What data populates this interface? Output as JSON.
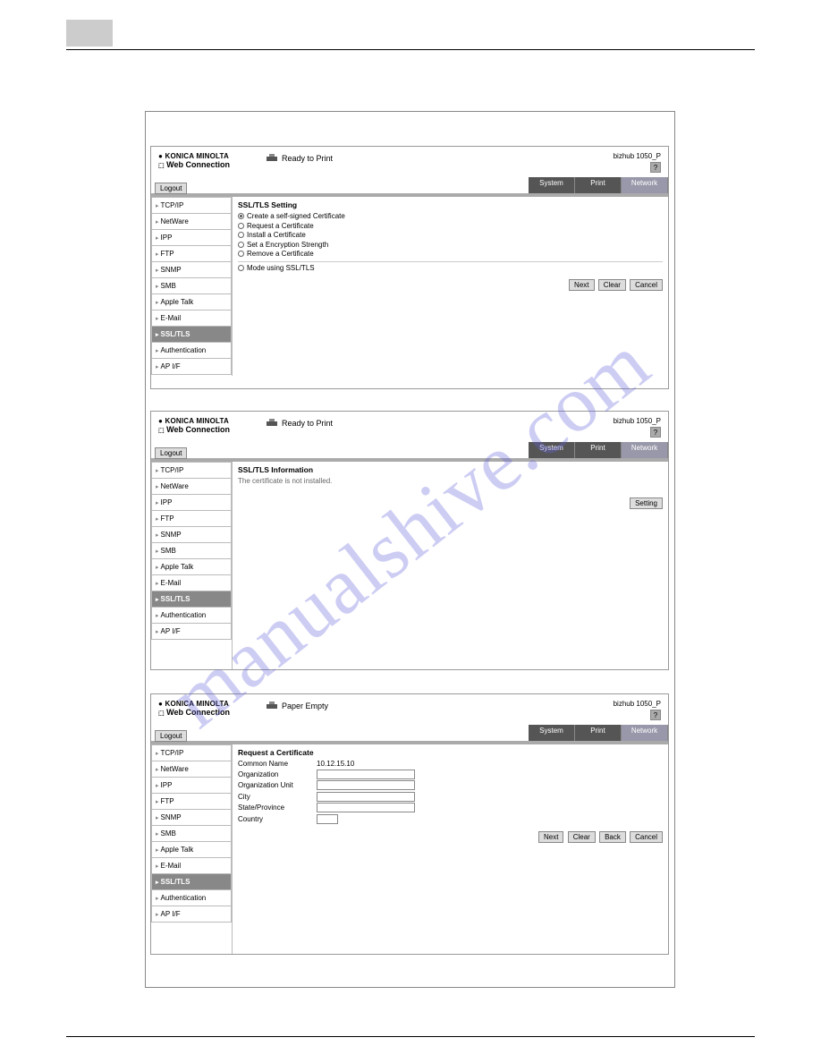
{
  "watermark": "manualshive.com",
  "brand": {
    "line1": "KONICA MINOLTA",
    "line2_prefix": "PAGE SCOPE",
    "line2": "Web Connection"
  },
  "model": "bizhub 1050_P",
  "help_label": "?",
  "logout_label": "Logout",
  "tabs": {
    "system": "System",
    "print": "Print",
    "network": "Network"
  },
  "sidebar": {
    "items": [
      {
        "label": "TCP/IP"
      },
      {
        "label": "NetWare"
      },
      {
        "label": "IPP"
      },
      {
        "label": "FTP"
      },
      {
        "label": "SNMP"
      },
      {
        "label": "SMB"
      },
      {
        "label": "Apple Talk"
      },
      {
        "label": "E-Mail"
      },
      {
        "label": "SSL/TLS",
        "active": true
      },
      {
        "label": "Authentication"
      },
      {
        "label": "AP I/F"
      }
    ]
  },
  "shot1": {
    "status": "Ready to Print",
    "title": "SSL/TLS Setting",
    "options": [
      {
        "label": "Create a self-signed Certificate",
        "selected": true
      },
      {
        "label": "Request a Certificate"
      },
      {
        "label": "Install a Certificate"
      },
      {
        "label": "Set a Encryption Strength"
      },
      {
        "label": "Remove a Certificate"
      }
    ],
    "mode_label": "Mode using SSL/TLS",
    "buttons": {
      "next": "Next",
      "clear": "Clear",
      "cancel": "Cancel"
    }
  },
  "shot2": {
    "status": "Ready to Print",
    "title": "SSL/TLS Information",
    "message": "The certificate is not installed.",
    "setting_btn": "Setting"
  },
  "shot3": {
    "status": "Paper Empty",
    "title": "Request a Certificate",
    "fields": {
      "common_name": {
        "label": "Common Name",
        "value": "10.12.15.10"
      },
      "organization": {
        "label": "Organization"
      },
      "org_unit": {
        "label": "Organization Unit"
      },
      "city": {
        "label": "City"
      },
      "state": {
        "label": "State/Province"
      },
      "country": {
        "label": "Country"
      }
    },
    "buttons": {
      "next": "Next",
      "clear": "Clear",
      "back": "Back",
      "cancel": "Cancel"
    }
  }
}
